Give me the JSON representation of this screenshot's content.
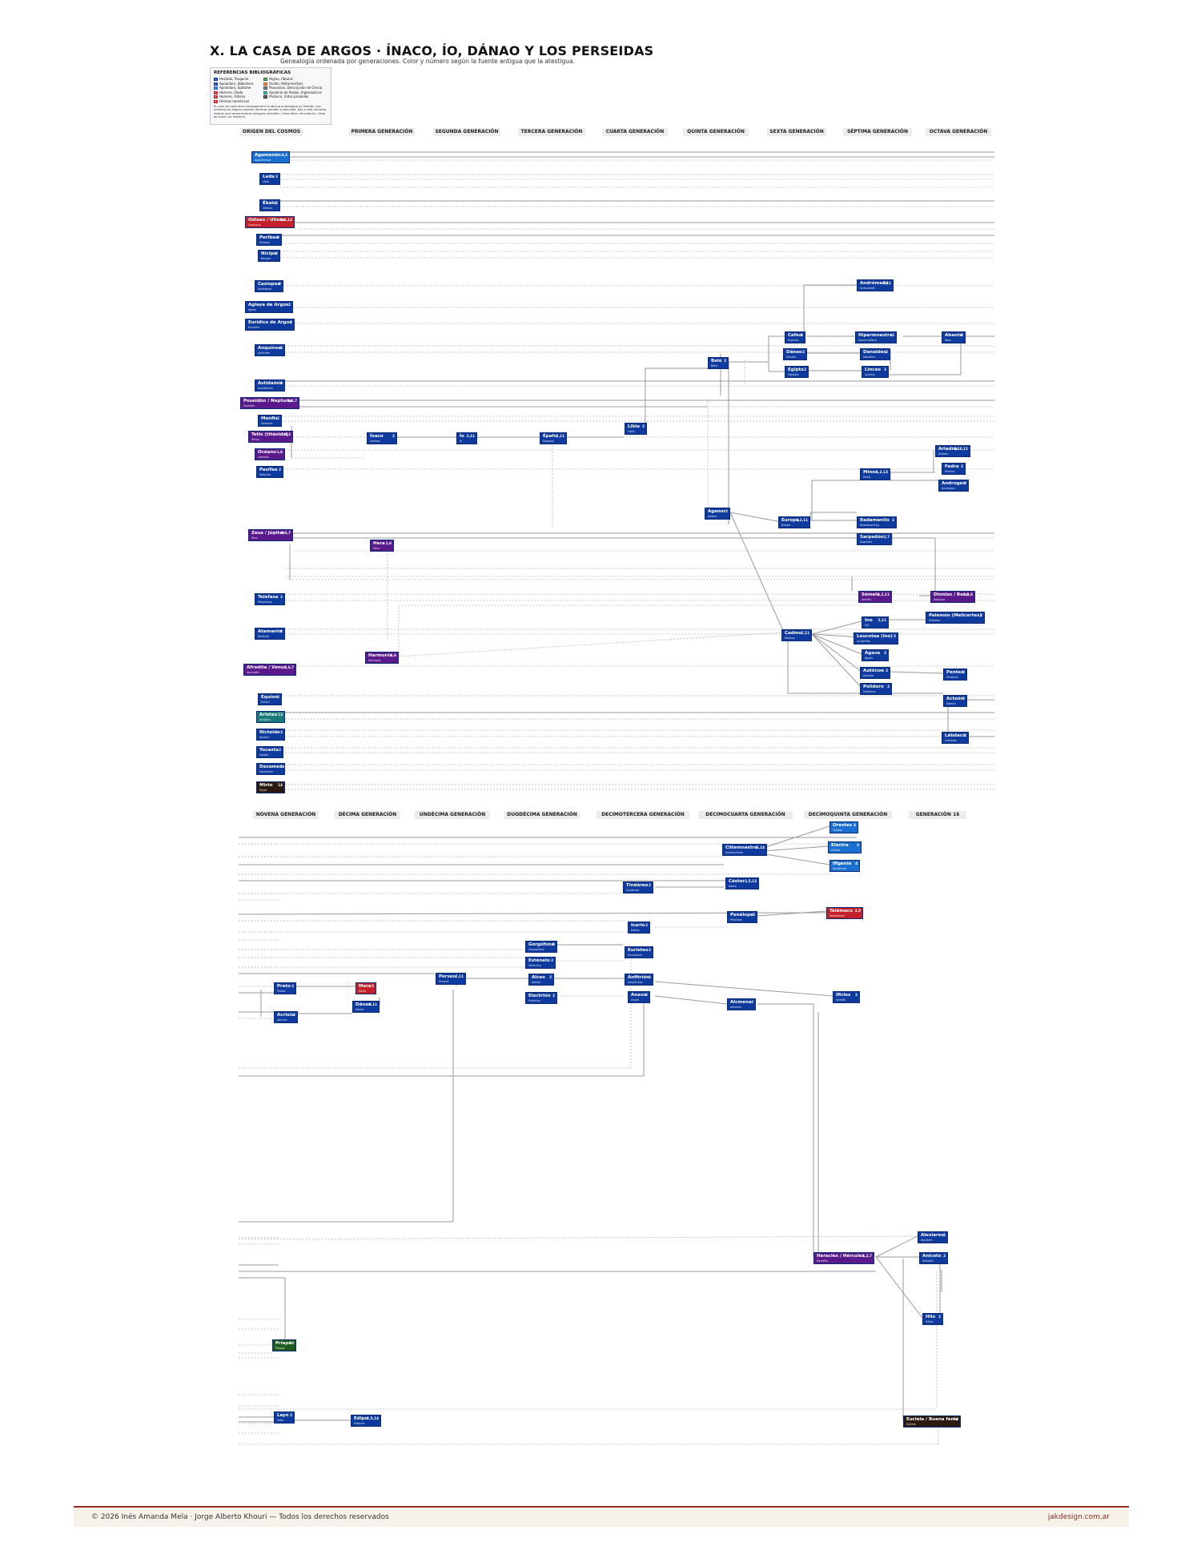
{
  "title": "X. LA CASA DE ARGOS · ÍNACO, ÍO, DÁNAO Y LOS PERSEIDAS",
  "subtitle": "Genealogía ordenada por generaciones. Color y número según la fuente antigua que la atestigua.",
  "legend": {
    "title": "REFERENCIAS BIBLIOGRÁFICAS",
    "items": [
      {
        "num": "1",
        "label": "Hesíodo, Teogonía",
        "color": "#0f3a9e"
      },
      {
        "num": "2",
        "label": "Apolodoro, Biblioteca",
        "color": "#0f3a9e"
      },
      {
        "num": "3",
        "label": "Apolodoro, Epítome",
        "color": "#1a5fc8"
      },
      {
        "num": "4",
        "label": "Homero, Ilíada",
        "color": "#c4202a"
      },
      {
        "num": "5",
        "label": "Homero, Odisea",
        "color": "#c4202a"
      },
      {
        "num": "6",
        "label": "Himnos homéricos",
        "color": "#c4202a"
      },
      {
        "num": "10",
        "label": "Higino, fábulas",
        "color": "#1e6b2a"
      },
      {
        "num": "11",
        "label": "Ovidio, Metamorfosis",
        "color": "#c85a14"
      },
      {
        "num": "12",
        "label": "Pausanias, Descripción de Grecia",
        "color": "#4a4a4a"
      },
      {
        "num": "13",
        "label": "Apolonio de Rodas, Argonáuticas",
        "color": "#1a7a7a"
      },
      {
        "num": "14",
        "label": "Plutarco, Vidas paralelas",
        "color": "#2b1a10"
      }
    ],
    "note": "El color de cada ficha corresponde a la obra que atestigua su filiación. Los números en ángulo superior derecho remiten a esta lista. Dos o más números indican que varios autores antiguos coinciden. Línea llena: vía paterna. Línea de trazo: vía materna."
  },
  "gen_headers_top": [
    "ORIGEN DEL COSMOS",
    "PRIMERA GENERACIÓN",
    "SEGUNDA GENERACIÓN",
    "TERCERA GENERACIÓN",
    "CUARTA GENERACIÓN",
    "QUINTA GENERACIÓN",
    "SEXTA GENERACIÓN",
    "SÉPTIMA GENERACIÓN",
    "OCTAVA GENERACIÓN"
  ],
  "gen_headers_bottom": [
    "NOVENA GENERACIÓN",
    "DÉCIMA GENERACIÓN",
    "UNDÉCIMA GENERACIÓN",
    "DUODÉCIMA GENERACIÓN",
    "DECIMOTERCERA GENERACIÓN",
    "DECIMOCUARTA GENERACIÓN",
    "DECIMOQUINTA GENERACIÓN",
    "GENERACIÓN 16"
  ],
  "colors": {
    "blue": "#0f3a9e",
    "light_blue": "#1a6fd0",
    "red": "#c4202a",
    "purple": "#5a1a8c",
    "teal": "#1a7a7a",
    "green": "#1e5a1e",
    "dark": "#2b1a10",
    "line": "#9a9a9a",
    "footer_rule": "#9a2a20"
  },
  "nodes": [
    {
      "id": "agamenon",
      "name": "Agamenón",
      "src": "4,5",
      "sub": "Agamemnon",
      "color": "#1a6fd0"
    },
    {
      "id": "leda",
      "name": "Leda",
      "src": "2",
      "sub": "Léda",
      "color": "#0f3a9e"
    },
    {
      "id": "ebalo",
      "name": "Ébalo",
      "src": "2",
      "sub": "Oíbalos",
      "color": "#0f3a9e"
    },
    {
      "id": "odiseo",
      "name": "Odiseo / Ulises",
      "src": "3,4,13",
      "sub": "Odysseus",
      "color": "#c4202a"
    },
    {
      "id": "peribea",
      "name": "Peribea",
      "src": "2",
      "sub": "Periboia",
      "color": "#0f3a9e"
    },
    {
      "id": "nicipe",
      "name": "Nícipe",
      "src": "2",
      "sub": "Nikíppe",
      "color": "#0f3a9e"
    },
    {
      "id": "casiopea",
      "name": "Casiopea",
      "src": "2",
      "sub": "Kassiépeia",
      "color": "#0f3a9e"
    },
    {
      "id": "aglaya",
      "name": "Aglaya de Argos",
      "src": "2",
      "sub": "Aglaía",
      "color": "#0f3a9e"
    },
    {
      "id": "euridice",
      "name": "Eurídice de Argos",
      "src": "2",
      "sub": "Eurydíke",
      "color": "#0f3a9e"
    },
    {
      "id": "anquinoe",
      "name": "Anquínoe",
      "src": "2",
      "sub": "Ankhinóe",
      "color": "#0f3a9e"
    },
    {
      "id": "astidamia",
      "name": "Astidamía",
      "src": "2",
      "sub": "Astydámeia",
      "color": "#0f3a9e"
    },
    {
      "id": "poseidon",
      "name": "Poseidón / Neptuno",
      "src": "1,6,7",
      "sub": "Poseidôn",
      "color": "#5a1a8c"
    },
    {
      "id": "menfis",
      "name": "Menfis",
      "src": "2",
      "sub": "Mémphis",
      "color": "#0f3a9e"
    },
    {
      "id": "tetis",
      "name": "Tetis (titánide)",
      "src": "1,2",
      "sub": "Tethys",
      "color": "#5a1a8c"
    },
    {
      "id": "oceano",
      "name": "Océano",
      "src": "1,6",
      "sub": "Okeanós",
      "color": "#5a1a8c"
    },
    {
      "id": "pecifae",
      "name": "Pasífae",
      "src": "2",
      "sub": "Pasipháe",
      "color": "#0f3a9e"
    },
    {
      "id": "zeus",
      "name": "Zeus / Júpiter",
      "src": "1,6,7",
      "sub": "Zeus",
      "color": "#5a1a8c"
    },
    {
      "id": "telefasa",
      "name": "Telefasa",
      "src": "2",
      "sub": "Telephássa",
      "color": "#0f3a9e"
    },
    {
      "id": "atamante",
      "name": "Atamante",
      "src": "2",
      "sub": "Athámas",
      "color": "#0f3a9e"
    },
    {
      "id": "afrodita",
      "name": "Afrodita / Venus",
      "src": "1,6,7",
      "sub": "Aphrodíte",
      "color": "#5a1a8c"
    },
    {
      "id": "equion",
      "name": "Equíon",
      "src": "2",
      "sub": "Ekhíon",
      "color": "#0f3a9e"
    },
    {
      "id": "aristeo",
      "name": "Aristeo",
      "src": "13",
      "sub": "Aristaîos",
      "color": "#1a7a7a"
    },
    {
      "id": "nicteide",
      "name": "Nicteide",
      "src": "2",
      "sub": "Nykteís",
      "color": "#0f3a9e"
    },
    {
      "id": "yocasta",
      "name": "Yocasta",
      "src": "2",
      "sub": "Iokáste",
      "color": "#0f3a9e"
    },
    {
      "id": "dexamene",
      "name": "Dexamene",
      "src": "2",
      "sub": "Dexaméne",
      "color": "#0f3a9e"
    },
    {
      "id": "mirto",
      "name": "Mirto",
      "src": "14",
      "sub": "Myrtó",
      "color": "#2b1a10"
    },
    {
      "id": "inaco",
      "name": "Ínaco",
      "src": "2",
      "sub": "Ínakhos",
      "color": "#0f3a9e"
    },
    {
      "id": "hera",
      "name": "Hera",
      "src": "1,6",
      "sub": "Héra",
      "color": "#5a1a8c"
    },
    {
      "id": "harmonia",
      "name": "Harmonía",
      "src": "1,6",
      "sub": "Harmonía",
      "color": "#5a1a8c"
    },
    {
      "id": "io",
      "name": "Ío",
      "src": "2,11",
      "sub": "Ió",
      "color": "#0f3a9e"
    },
    {
      "id": "epafo",
      "name": "Épafo",
      "src": "2,11",
      "sub": "Épaphos",
      "color": "#0f3a9e"
    },
    {
      "id": "libia",
      "name": "Libia",
      "src": "2",
      "sub": "Libýe",
      "color": "#0f3a9e"
    },
    {
      "id": "belo",
      "name": "Belo",
      "src": "2",
      "sub": "Bêlos",
      "color": "#0f3a9e"
    },
    {
      "id": "agenor",
      "name": "Agenor",
      "src": "2",
      "sub": "Agénor",
      "color": "#0f3a9e"
    },
    {
      "id": "cefeo",
      "name": "Cefeo",
      "src": "2",
      "sub": "Kepheús",
      "color": "#0f3a9e"
    },
    {
      "id": "danao",
      "name": "Dánao",
      "src": "2",
      "sub": "Danaós",
      "color": "#0f3a9e"
    },
    {
      "id": "egipto",
      "name": "Egipto",
      "src": "2",
      "sub": "Aígyptos",
      "color": "#0f3a9e"
    },
    {
      "id": "europa",
      "name": "Europa",
      "src": "1,2,11",
      "sub": "Európe",
      "color": "#0f3a9e"
    },
    {
      "id": "cadmo",
      "name": "Cadmo",
      "src": "2,11",
      "sub": "Kádmos",
      "color": "#0f3a9e"
    },
    {
      "id": "andromeda",
      "name": "Andrómeda",
      "src": "2,11",
      "sub": "Andromédé",
      "color": "#0f3a9e"
    },
    {
      "id": "hipermnestra",
      "name": "Hipermnestra",
      "src": "2",
      "sub": "Hypermnéstra",
      "color": "#0f3a9e"
    },
    {
      "id": "danaides",
      "name": "Danaides",
      "src": "2",
      "sub": "Danaïdes",
      "color": "#0f3a9e"
    },
    {
      "id": "linceo",
      "name": "Linceo",
      "src": "2",
      "sub": "Lynkeús",
      "color": "#0f3a9e"
    },
    {
      "id": "minos",
      "name": "Minos",
      "src": "1,2,13",
      "sub": "Mínos",
      "color": "#0f3a9e"
    },
    {
      "id": "radamantis",
      "name": "Radamantis",
      "src": "2",
      "sub": "Rhadámanthys",
      "color": "#0f3a9e"
    },
    {
      "id": "sarpedon",
      "name": "Sarpedón",
      "src": "2,7",
      "sub": "Sarpedón",
      "color": "#0f3a9e"
    },
    {
      "id": "semele",
      "name": "Sémele",
      "src": "1,2,11",
      "sub": "Seméle",
      "color": "#5a1a8c"
    },
    {
      "id": "ino",
      "name": "Ino",
      "src": "2,11",
      "sub": "Inó",
      "color": "#0f3a9e"
    },
    {
      "id": "leucotea",
      "name": "Leucotea (Ino)",
      "src": "5",
      "sub": "Leukothéa",
      "color": "#0f3a9e"
    },
    {
      "id": "agave",
      "name": "Ágave",
      "src": "2",
      "sub": "Agaúe",
      "color": "#0f3a9e"
    },
    {
      "id": "autonoe",
      "name": "Autónoe",
      "src": "2",
      "sub": "Autonóe",
      "color": "#0f3a9e"
    },
    {
      "id": "polidoro",
      "name": "Polidoro",
      "src": "2",
      "sub": "Polýdoros",
      "color": "#0f3a9e"
    },
    {
      "id": "abante",
      "name": "Abante",
      "src": "2",
      "sub": "Ábas",
      "color": "#0f3a9e"
    },
    {
      "id": "ariadna",
      "name": "Ariadna",
      "src": "2,10,11",
      "sub": "Ariádne",
      "color": "#0f3a9e"
    },
    {
      "id": "fedra",
      "name": "Fedra",
      "src": "2",
      "sub": "Phaídra",
      "color": "#0f3a9e"
    },
    {
      "id": "androgeo",
      "name": "Androgeo",
      "src": "2",
      "sub": "Andrógeos",
      "color": "#0f3a9e"
    },
    {
      "id": "dioniso",
      "name": "Dioniso / Baco",
      "src": "1,2,6",
      "sub": "Diónysos",
      "color": "#5a1a8c"
    },
    {
      "id": "palemon",
      "name": "Palemón (Melicertes)",
      "src": "2",
      "sub": "Palaímon",
      "color": "#0f3a9e"
    },
    {
      "id": "penteo",
      "name": "Penteo",
      "src": "2",
      "sub": "Pentheús",
      "color": "#0f3a9e"
    },
    {
      "id": "acteon",
      "name": "Acteón",
      "src": "2",
      "sub": "Aktaíon",
      "color": "#0f3a9e"
    },
    {
      "id": "labdaco",
      "name": "Lábdaco",
      "src": "2",
      "sub": "Lábdakos",
      "color": "#0f3a9e"
    },
    {
      "id": "preto",
      "name": "Preto",
      "src": "2",
      "sub": "Proîtos",
      "color": "#0f3a9e"
    },
    {
      "id": "acrisio",
      "name": "Acrisio",
      "src": "2",
      "sub": "Akrísios",
      "color": "#0f3a9e"
    },
    {
      "id": "priapo",
      "name": "Príapo",
      "src": "10",
      "sub": "Príapos",
      "color": "#1e5a1e"
    },
    {
      "id": "layo",
      "name": "Layo",
      "src": "2",
      "sub": "Láïos",
      "color": "#0f3a9e"
    },
    {
      "id": "mera",
      "name": "Mera",
      "src": "5",
      "sub": "Maîra",
      "color": "#c4202a"
    },
    {
      "id": "danae",
      "name": "Dánae",
      "src": "2,11",
      "sub": "Danáe",
      "color": "#0f3a9e"
    },
    {
      "id": "edipo",
      "name": "Edipo",
      "src": "2,5,14",
      "sub": "Oidípous",
      "color": "#0f3a9e"
    },
    {
      "id": "perseo",
      "name": "Perseo",
      "src": "2,11",
      "sub": "Perseús",
      "color": "#0f3a9e"
    },
    {
      "id": "gorgofone",
      "name": "Gorgófone",
      "src": "2",
      "sub": "Gorgophóne",
      "color": "#0f3a9e"
    },
    {
      "id": "estenelo",
      "name": "Esténelo",
      "src": "2",
      "sub": "Sthénelos",
      "color": "#0f3a9e"
    },
    {
      "id": "alceo",
      "name": "Alceo",
      "src": "2",
      "sub": "Alkaîos",
      "color": "#0f3a9e"
    },
    {
      "id": "electrion",
      "name": "Electrión",
      "src": "2",
      "sub": "Elektrýon",
      "color": "#0f3a9e"
    },
    {
      "id": "tindareo",
      "name": "Tindáreo",
      "src": "2",
      "sub": "Tyndáreos",
      "color": "#0f3a9e"
    },
    {
      "id": "icario",
      "name": "Icario",
      "src": "2",
      "sub": "Ikários",
      "color": "#0f3a9e"
    },
    {
      "id": "euristeo",
      "name": "Euristeo",
      "src": "2",
      "sub": "Eurystheús",
      "color": "#0f3a9e"
    },
    {
      "id": "anfitrion",
      "name": "Anfitrión",
      "src": "2",
      "sub": "Amphitrýon",
      "color": "#0f3a9e"
    },
    {
      "id": "anaxo",
      "name": "Anaxo",
      "src": "2",
      "sub": "Anaxó",
      "color": "#0f3a9e"
    },
    {
      "id": "clitemnestra",
      "name": "Clitemnestra",
      "src": "2,14",
      "sub": "Klytaimnéstra",
      "color": "#0f3a9e"
    },
    {
      "id": "castor",
      "name": "Cástor",
      "src": "2,5,13",
      "sub": "Kástor",
      "color": "#0f3a9e"
    },
    {
      "id": "penelope",
      "name": "Penélope",
      "src": "5",
      "sub": "Penelópe",
      "color": "#0f3a9e"
    },
    {
      "id": "alcmena",
      "name": "Alcmena",
      "src": "2",
      "sub": "Alkméne",
      "color": "#0f3a9e"
    },
    {
      "id": "heracles",
      "name": "Heracles / Hércules",
      "src": "1,2,7",
      "sub": "Heraklês",
      "color": "#5a1a8c"
    },
    {
      "id": "orestes",
      "name": "Orestes",
      "src": "4",
      "sub": "Oréstes",
      "color": "#1a6fd0"
    },
    {
      "id": "electra",
      "name": "Electra",
      "src": "4",
      "sub": "Eléktra",
      "color": "#1a6fd0"
    },
    {
      "id": "ifigenia",
      "name": "Ifigenia",
      "src": "4",
      "sub": "Iphigéneia",
      "color": "#1a6fd0"
    },
    {
      "id": "telemaco",
      "name": "Telémaco",
      "src": "3,5",
      "sub": "Telémakhos",
      "color": "#c4202a"
    },
    {
      "id": "ificles",
      "name": "Ificles",
      "src": "2",
      "sub": "Iphiklês",
      "color": "#0f3a9e"
    },
    {
      "id": "alexiares",
      "name": "Alexiares",
      "src": "2",
      "sub": "Alexiáres",
      "color": "#0f3a9e"
    },
    {
      "id": "aniceto",
      "name": "Aniceto",
      "src": "2",
      "sub": "Aníketos",
      "color": "#0f3a9e"
    },
    {
      "id": "hilo",
      "name": "Hilo",
      "src": "2",
      "sub": "Hýllos",
      "color": "#0f3a9e"
    },
    {
      "id": "eucleia",
      "name": "Eucleia / Buena fama",
      "src": "14",
      "sub": "Eúkleia",
      "color": "#2b1a10"
    }
  ],
  "footer": {
    "left": "© 2026  Inés Amanda Mela  ·  Jorge Alberto Khouri  —  Todos los derechos reservados",
    "right": "jakdesign.com.ar"
  }
}
